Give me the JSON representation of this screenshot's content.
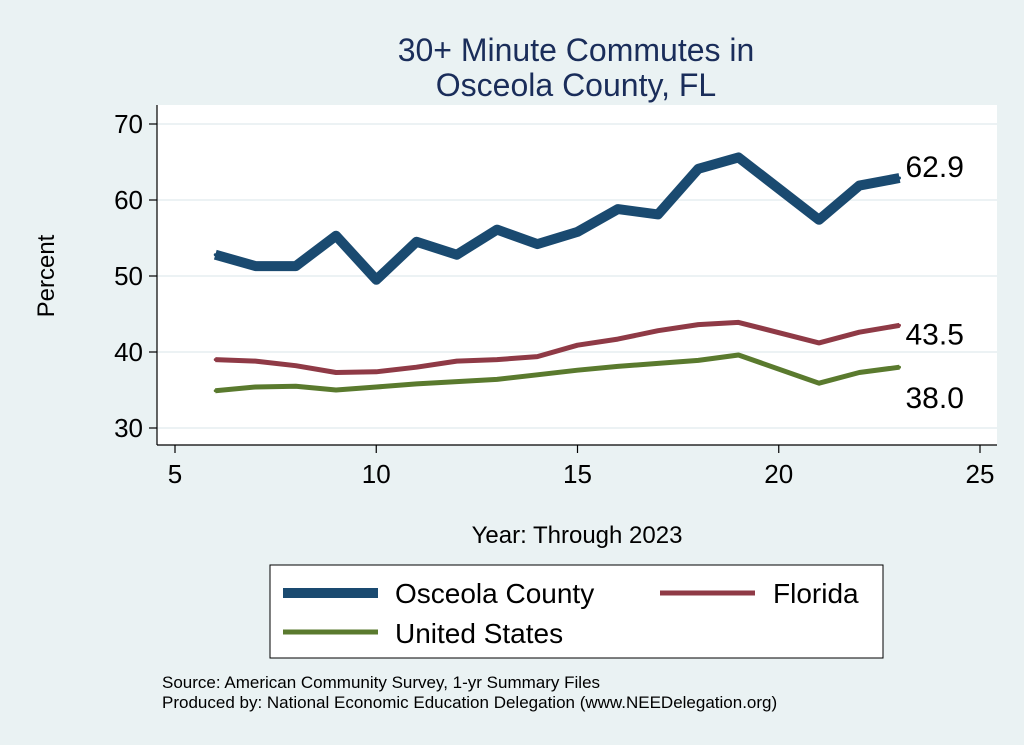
{
  "chart_data": {
    "type": "line",
    "title": [
      "30+ Minute Commutes in",
      "Osceola County, FL"
    ],
    "xlabel": "Year: Through 2023",
    "ylabel": "Percent",
    "xlim": [
      5,
      25
    ],
    "ylim": [
      30,
      70
    ],
    "xticks": [
      5,
      10,
      15,
      20,
      25
    ],
    "yticks": [
      30,
      40,
      50,
      60,
      70
    ],
    "grid": true,
    "legend_position": "bottom",
    "series": [
      {
        "name": "Osceola County",
        "color": "#1a4a70",
        "x": [
          6,
          7,
          8,
          9,
          10,
          11,
          12,
          13,
          14,
          15,
          16,
          17,
          18,
          19,
          21,
          22,
          23
        ],
        "values": [
          52.8,
          51.3,
          51.3,
          55.3,
          49.5,
          54.5,
          52.8,
          56.1,
          54.2,
          55.8,
          58.8,
          58.1,
          64.1,
          65.6,
          57.4,
          61.9,
          62.9
        ],
        "end_label": "62.9"
      },
      {
        "name": "Florida",
        "color": "#8f3a46",
        "x": [
          6,
          7,
          8,
          9,
          10,
          11,
          12,
          13,
          14,
          15,
          16,
          17,
          18,
          19,
          21,
          22,
          23
        ],
        "values": [
          39.0,
          38.8,
          38.2,
          37.3,
          37.4,
          38.0,
          38.8,
          39.0,
          39.4,
          40.9,
          41.7,
          42.8,
          43.6,
          43.9,
          41.2,
          42.6,
          43.5
        ],
        "end_label": "43.5"
      },
      {
        "name": "United States",
        "color": "#5a7a2e",
        "x": [
          6,
          7,
          8,
          9,
          10,
          11,
          12,
          13,
          14,
          15,
          16,
          17,
          18,
          19,
          21,
          22,
          23
        ],
        "values": [
          34.9,
          35.4,
          35.5,
          35.0,
          35.4,
          35.8,
          36.1,
          36.4,
          37.0,
          37.6,
          38.1,
          38.5,
          38.9,
          39.6,
          35.9,
          37.3,
          38.0
        ],
        "end_label": "38.0"
      }
    ],
    "notes": [
      "Source: American Community Survey, 1-yr Summary Files",
      "Produced by: National Economic Education Delegation (www.NEEDelegation.org)"
    ]
  }
}
